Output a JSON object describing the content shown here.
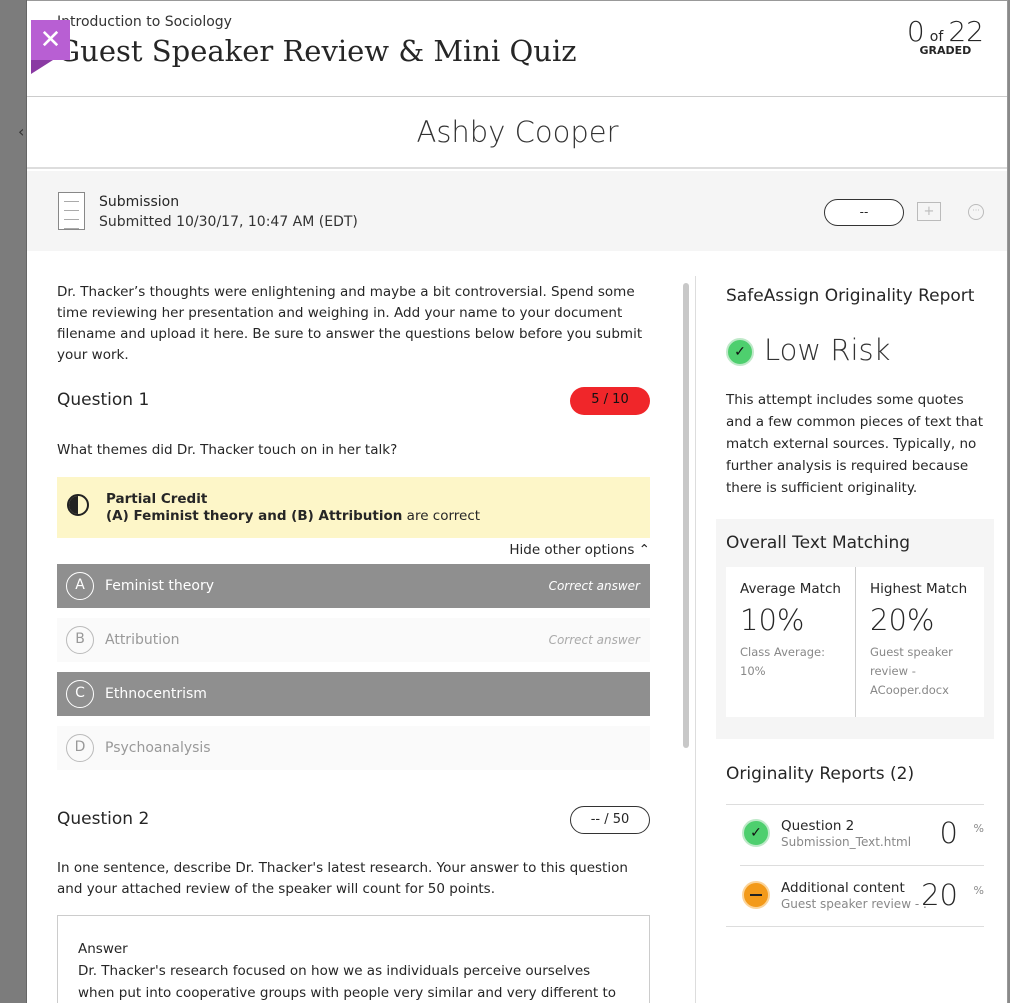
{
  "header": {
    "course": "Introduction to Sociology",
    "title": "Guest Speaker Review & Mini Quiz",
    "graded_count": "0",
    "graded_of": "of",
    "graded_total": "22",
    "graded_label": "GRADED",
    "close_icon": "close-icon"
  },
  "student": {
    "name": "Ashby Cooper"
  },
  "submission": {
    "label": "Submission",
    "submitted": "Submitted 10/30/17, 10:47 AM (EDT)",
    "grade": "--",
    "feedback_icon": "+",
    "more_icon": "···"
  },
  "assignment": {
    "intro": "Dr. Thacker’s thoughts were enlightening and maybe a bit controversial. Spend some time reviewing her presentation and weighing in. Add your name to your document filename and upload it here. Be sure to answer the questions below before you submit your work."
  },
  "question1": {
    "title": "Question 1",
    "score": "5 / 10",
    "score_color": "#f0262a",
    "text": "What themes did Dr. Thacker touch on in her talk?",
    "partial_title": "Partial Credit",
    "partial_bold": "(A) Feminist theory and (B) Attribution",
    "partial_rest": " are correct",
    "hide_options": "Hide other options ⌃",
    "options": [
      {
        "letter": "A",
        "label": "Feminist theory",
        "note": "Correct answer",
        "selected": true
      },
      {
        "letter": "B",
        "label": "Attribution",
        "note": "Correct answer",
        "selected": false
      },
      {
        "letter": "C",
        "label": "Ethnocentrism",
        "note": "",
        "selected": true
      },
      {
        "letter": "D",
        "label": "Psychoanalysis",
        "note": "",
        "selected": false
      }
    ]
  },
  "question2": {
    "title": "Question 2",
    "score": "-- / 50",
    "text": "In one sentence, describe Dr. Thacker's latest research. Your answer to this question and your attached review of the speaker will count for 50 points.",
    "answer_label": "Answer",
    "answer": "Dr. Thacker's research focused on how we as individuals perceive ourselves when put into cooperative groups with people very similar and very different to us."
  },
  "safeassign": {
    "title": "SafeAssign Originality Report",
    "risk": "Low Risk",
    "check_icon": "✓",
    "description": "This attempt includes some quotes and a few common pieces of text that match external sources. Typically, no further analysis is required because there is sufficient originality.",
    "overall": {
      "title": "Overall Text Matching",
      "average_label": "Average Match",
      "average_value": "10%",
      "class_average": "Class Average: 10%",
      "highest_label": "Highest Match",
      "highest_value": "20%",
      "highest_file": "Guest speaker review - ACooper.docx"
    },
    "reports_title": "Originality Reports (2)",
    "reports": [
      {
        "name": "Question 2",
        "file": "Submission_Text.html",
        "percent": "0",
        "unit": "%",
        "status": "low",
        "color": "#4ecf6e"
      },
      {
        "name": "Additional content",
        "file": "Guest speaker review - ...",
        "percent": "20",
        "unit": "%",
        "status": "medium",
        "color": "#f39a1a"
      }
    ]
  }
}
